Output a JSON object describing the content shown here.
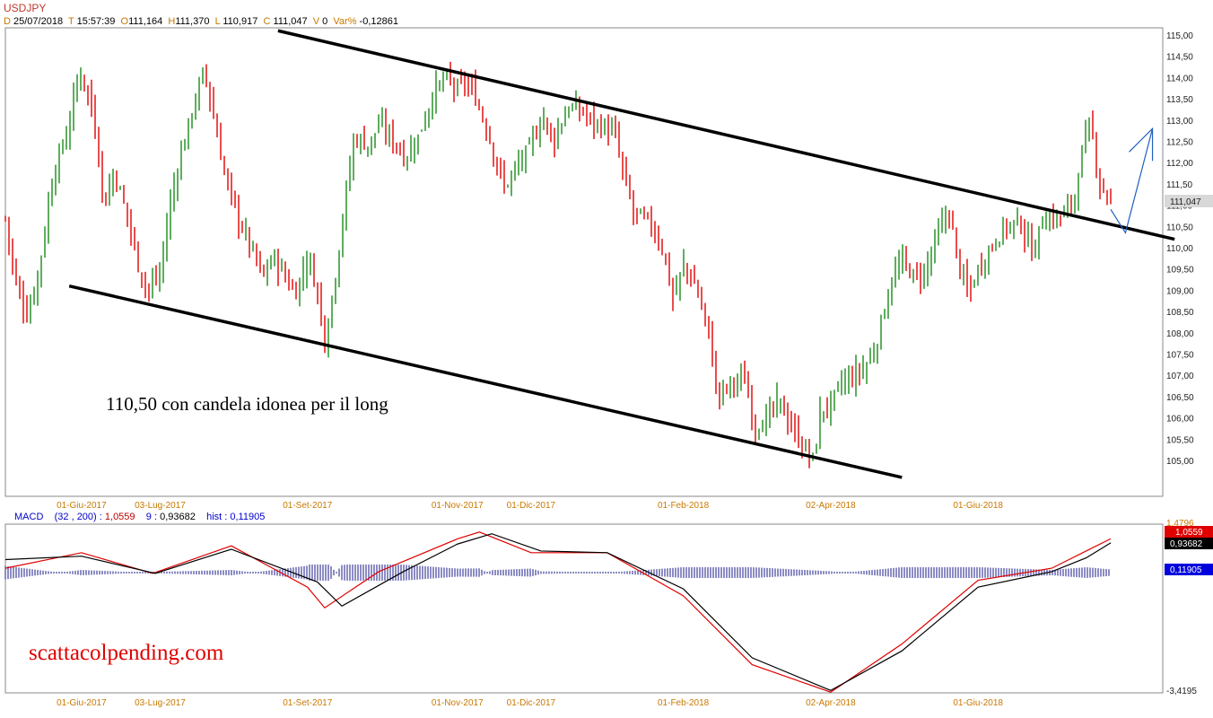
{
  "header": {
    "symbol": "USDJPY",
    "date_key": "D",
    "date": "25/07/2018",
    "time_key": "T",
    "time": "15:57:39",
    "open_key": "O",
    "open": "111,164",
    "high_key": "H",
    "high": "111,370",
    "low_key": "L",
    "low": "110,917",
    "close_key": "C",
    "close": "111,047",
    "vol_key": "V",
    "vol": "0",
    "var_key": "Var%",
    "var": "-0,12861"
  },
  "macd_header": {
    "label": "MACD",
    "params": "(32 , 200) :",
    "macd_value": "1,0559",
    "signal_label": "9 :",
    "signal_value": "0,93682",
    "hist_label": "hist :",
    "hist_value": "0,11905"
  },
  "annotation": "110,50 con candela idonea per il long",
  "watermark": "scattacolpending.com",
  "colors": {
    "up": "#1a8a1a",
    "down": "#e00000",
    "macd": "#e00000",
    "signal": "#000000",
    "hist": "#1a1a8a",
    "accent": "#c87800",
    "arrow": "#1f5fbf"
  },
  "chart_data": [
    {
      "type": "candlestick",
      "title": "USDJPY",
      "xlabel": "",
      "ylabel": "",
      "ylim": [
        104.5,
        115.2
      ],
      "y_ticks": [
        "115,00",
        "114,50",
        "114,00",
        "113,50",
        "113,00",
        "112,50",
        "112,00",
        "111,50",
        "111,00",
        "110,50",
        "110,00",
        "109,50",
        "109,00",
        "108,50",
        "108,00",
        "107,50",
        "107,00",
        "106,50",
        "106,00",
        "105,50",
        "105,00"
      ],
      "date_labels": [
        "01-Giu-2017",
        "03-Lug-2017",
        "01-Set-2017",
        "01-Nov-2017",
        "01-Dic-2017",
        "01-Feb-2018",
        "02-Apr-2018",
        "01-Giu-2018"
      ],
      "last_price_label": "111,047",
      "close_path": [
        [
          "2017-05-01",
          110.7
        ],
        [
          "2017-05-05",
          109.2
        ],
        [
          "2017-05-10",
          108.4
        ],
        [
          "2017-05-15",
          109.6
        ],
        [
          "2017-05-20",
          111.6
        ],
        [
          "2017-05-27",
          112.9
        ],
        [
          "2017-05-31",
          114.2
        ],
        [
          "2017-06-04",
          113.6
        ],
        [
          "2017-06-08",
          112.3
        ],
        [
          "2017-06-10",
          110.9
        ],
        [
          "2017-06-14",
          111.8
        ],
        [
          "2017-06-20",
          110.7
        ],
        [
          "2017-06-24",
          109.6
        ],
        [
          "2017-06-28",
          109.0
        ],
        [
          "2017-07-03",
          109.4
        ],
        [
          "2017-07-07",
          111.0
        ],
        [
          "2017-07-11",
          112.1
        ],
        [
          "2017-07-16",
          113.2
        ],
        [
          "2017-07-21",
          114.2
        ],
        [
          "2017-07-24",
          113.3
        ],
        [
          "2017-07-29",
          111.8
        ],
        [
          "2017-08-03",
          110.8
        ],
        [
          "2017-08-09",
          110.0
        ],
        [
          "2017-08-14",
          109.3
        ],
        [
          "2017-08-18",
          109.8
        ],
        [
          "2017-08-22",
          109.4
        ],
        [
          "2017-08-27",
          108.9
        ],
        [
          "2017-09-01",
          109.8
        ],
        [
          "2017-09-05",
          109.0
        ],
        [
          "2017-09-08",
          107.8
        ],
        [
          "2017-09-12",
          109.2
        ],
        [
          "2017-09-16",
          111.0
        ],
        [
          "2017-09-20",
          112.6
        ],
        [
          "2017-09-26",
          112.4
        ],
        [
          "2017-09-30",
          112.9
        ],
        [
          "2017-10-05",
          112.6
        ],
        [
          "2017-10-11",
          112.1
        ],
        [
          "2017-10-16",
          112.6
        ],
        [
          "2017-10-22",
          113.6
        ],
        [
          "2017-10-27",
          114.0
        ],
        [
          "2017-11-01",
          113.7
        ],
        [
          "2017-11-04",
          113.9
        ],
        [
          "2017-11-08",
          113.6
        ],
        [
          "2017-11-14",
          112.6
        ],
        [
          "2017-11-20",
          111.4
        ],
        [
          "2017-11-24",
          111.8
        ],
        [
          "2017-11-30",
          112.3
        ],
        [
          "2017-12-06",
          113.1
        ],
        [
          "2017-12-10",
          112.5
        ],
        [
          "2017-12-16",
          113.3
        ],
        [
          "2017-12-22",
          113.2
        ],
        [
          "2017-12-28",
          112.9
        ],
        [
          "2018-01-04",
          112.7
        ],
        [
          "2018-01-08",
          111.6
        ],
        [
          "2018-01-12",
          110.8
        ],
        [
          "2018-01-18",
          110.6
        ],
        [
          "2018-01-23",
          110.1
        ],
        [
          "2018-01-28",
          108.8
        ],
        [
          "2018-02-01",
          109.6
        ],
        [
          "2018-02-06",
          109.1
        ],
        [
          "2018-02-11",
          108.1
        ],
        [
          "2018-02-15",
          106.5
        ],
        [
          "2018-02-20",
          106.8
        ],
        [
          "2018-02-26",
          106.9
        ],
        [
          "2018-03-02",
          105.8
        ],
        [
          "2018-03-06",
          105.9
        ],
        [
          "2018-03-12",
          106.4
        ],
        [
          "2018-03-16",
          105.9
        ],
        [
          "2018-03-22",
          105.3
        ],
        [
          "2018-03-26",
          105.0
        ],
        [
          "2018-03-29",
          106.2
        ],
        [
          "2018-04-02",
          106.3
        ],
        [
          "2018-04-06",
          106.8
        ],
        [
          "2018-04-10",
          106.9
        ],
        [
          "2018-04-16",
          107.2
        ],
        [
          "2018-04-20",
          107.6
        ],
        [
          "2018-04-26",
          109.1
        ],
        [
          "2018-05-01",
          109.7
        ],
        [
          "2018-05-06",
          109.3
        ],
        [
          "2018-05-10",
          109.4
        ],
        [
          "2018-05-15",
          110.2
        ],
        [
          "2018-05-20",
          110.9
        ],
        [
          "2018-05-24",
          109.6
        ],
        [
          "2018-05-28",
          108.9
        ],
        [
          "2018-06-01",
          109.5
        ],
        [
          "2018-06-06",
          110.0
        ],
        [
          "2018-06-12",
          110.5
        ],
        [
          "2018-06-18",
          110.6
        ],
        [
          "2018-06-23",
          109.9
        ],
        [
          "2018-06-28",
          110.7
        ],
        [
          "2018-07-04",
          110.7
        ],
        [
          "2018-07-10",
          111.1
        ],
        [
          "2018-07-13",
          112.2
        ],
        [
          "2018-07-17",
          112.9
        ],
        [
          "2018-07-20",
          111.6
        ],
        [
          "2018-07-23",
          111.3
        ],
        [
          "2018-07-25",
          111.05
        ]
      ],
      "trendlines": [
        {
          "name": "upper",
          "from": [
            "2017-08-20",
            115.1
          ],
          "to": [
            "2018-08-20",
            110.2
          ]
        },
        {
          "name": "lower",
          "from": [
            "2017-05-27",
            109.1
          ],
          "to": [
            "2018-05-01",
            104.6
          ]
        }
      ],
      "projection_arrow": [
        [
          "2018-07-25",
          110.9
        ],
        [
          "2018-07-31",
          110.35
        ],
        [
          "2018-08-11",
          112.8
        ]
      ]
    },
    {
      "type": "line",
      "title": "MACD",
      "series": [
        {
          "name": "MACD",
          "values": [
            [
              "2017-05-01",
              0.2
            ],
            [
              "2017-06-01",
              0.65
            ],
            [
              "2017-06-30",
              0.05
            ],
            [
              "2017-08-01",
              0.85
            ],
            [
              "2017-09-01",
              -0.35
            ],
            [
              "2017-09-08",
              -0.95
            ],
            [
              "2017-09-30",
              0.1
            ],
            [
              "2017-11-01",
              1.05
            ],
            [
              "2017-11-10",
              1.25
            ],
            [
              "2017-12-01",
              0.65
            ],
            [
              "2018-01-01",
              0.65
            ],
            [
              "2018-02-01",
              -0.6
            ],
            [
              "2018-03-01",
              -2.6
            ],
            [
              "2018-04-02",
              -3.4
            ],
            [
              "2018-05-01",
              -2.0
            ],
            [
              "2018-06-01",
              -0.15
            ],
            [
              "2018-07-01",
              0.2
            ],
            [
              "2018-07-15",
              0.7
            ],
            [
              "2018-07-25",
              1.0559
            ]
          ]
        },
        {
          "name": "9",
          "values": [
            [
              "2017-05-01",
              0.45
            ],
            [
              "2017-06-01",
              0.55
            ],
            [
              "2017-07-01",
              0.05
            ],
            [
              "2017-08-01",
              0.75
            ],
            [
              "2017-09-05",
              -0.2
            ],
            [
              "2017-09-15",
              -0.9
            ],
            [
              "2017-10-10",
              0.1
            ],
            [
              "2017-11-01",
              0.9
            ],
            [
              "2017-11-15",
              1.2
            ],
            [
              "2017-12-05",
              0.7
            ],
            [
              "2018-01-01",
              0.65
            ],
            [
              "2018-02-01",
              -0.4
            ],
            [
              "2018-03-01",
              -2.4
            ],
            [
              "2018-04-02",
              -3.35
            ],
            [
              "2018-05-01",
              -2.2
            ],
            [
              "2018-06-01",
              -0.35
            ],
            [
              "2018-07-01",
              0.1
            ],
            [
              "2018-07-15",
              0.5
            ],
            [
              "2018-07-25",
              0.93682
            ]
          ]
        }
      ],
      "hist_value": 0.11905,
      "ylim": [
        -3.4195,
        1.4796
      ],
      "y_ticks": [
        "1,4796",
        "-3,4195"
      ],
      "value_labels": [
        "1,0559",
        "0,93682",
        "0,11905"
      ],
      "date_labels": [
        "01-Giu-2017",
        "03-Lug-2017",
        "01-Set-2017",
        "01-Nov-2017",
        "01-Dic-2017",
        "01-Feb-2018",
        "02-Apr-2018",
        "01-Giu-2018"
      ]
    }
  ]
}
